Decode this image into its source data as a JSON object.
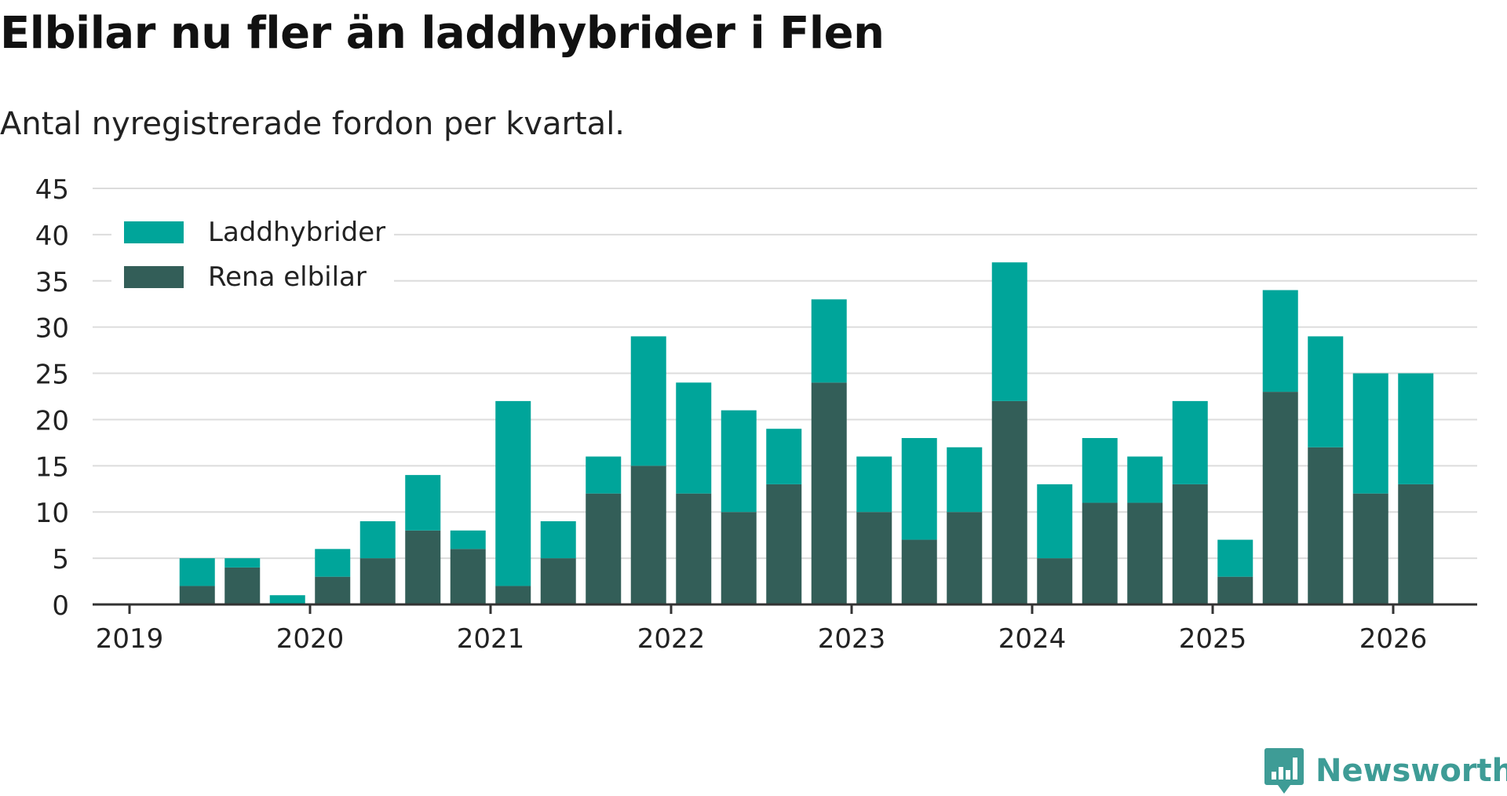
{
  "title": "Elbilar nu fler än laddhybrider i Flen",
  "subtitle": "Antal nyregistrerade fordon per kvartal.",
  "brand": {
    "name": "Newsworthy",
    "icon": "newsworthy-logo-icon",
    "color": "#3e9c96"
  },
  "chart_data": {
    "type": "bar",
    "stacked": true,
    "x_ticks": [
      "2019",
      "2020",
      "2021",
      "2022",
      "2023",
      "2024",
      "2025",
      "2026"
    ],
    "y_ticks": [
      0,
      5,
      10,
      15,
      20,
      25,
      30,
      35,
      40,
      45
    ],
    "ylim": [
      0,
      45
    ],
    "grid": true,
    "legend_position": "top-left",
    "categories": [
      "2019-Q1",
      "2019-Q2",
      "2019-Q3",
      "2019-Q4",
      "2020-Q1",
      "2020-Q2",
      "2020-Q3",
      "2020-Q4",
      "2021-Q1",
      "2021-Q2",
      "2021-Q3",
      "2021-Q4",
      "2022-Q1",
      "2022-Q2",
      "2022-Q3",
      "2022-Q4",
      "2023-Q1",
      "2023-Q2",
      "2023-Q3",
      "2023-Q4",
      "2024-Q1",
      "2024-Q2",
      "2024-Q3",
      "2024-Q4",
      "2025-Q1",
      "2025-Q2",
      "2025-Q3",
      "2025-Q4",
      "2026-Q1",
      "2026-Q2"
    ],
    "series": [
      {
        "name": "Rena elbilar",
        "color": "#335e58",
        "values": [
          0,
          2,
          4,
          0,
          3,
          5,
          8,
          6,
          2,
          5,
          12,
          15,
          12,
          10,
          13,
          24,
          10,
          7,
          10,
          22,
          5,
          11,
          11,
          13,
          3,
          23,
          17,
          12,
          13,
          0
        ]
      },
      {
        "name": "Laddhybrider",
        "color": "#00a59a",
        "values": [
          0,
          3,
          1,
          1,
          3,
          4,
          6,
          2,
          20,
          4,
          4,
          14,
          12,
          11,
          6,
          9,
          6,
          11,
          7,
          15,
          8,
          7,
          5,
          9,
          4,
          11,
          12,
          13,
          12,
          0
        ]
      }
    ],
    "legend": [
      "Laddhybrider",
      "Rena elbilar"
    ]
  }
}
